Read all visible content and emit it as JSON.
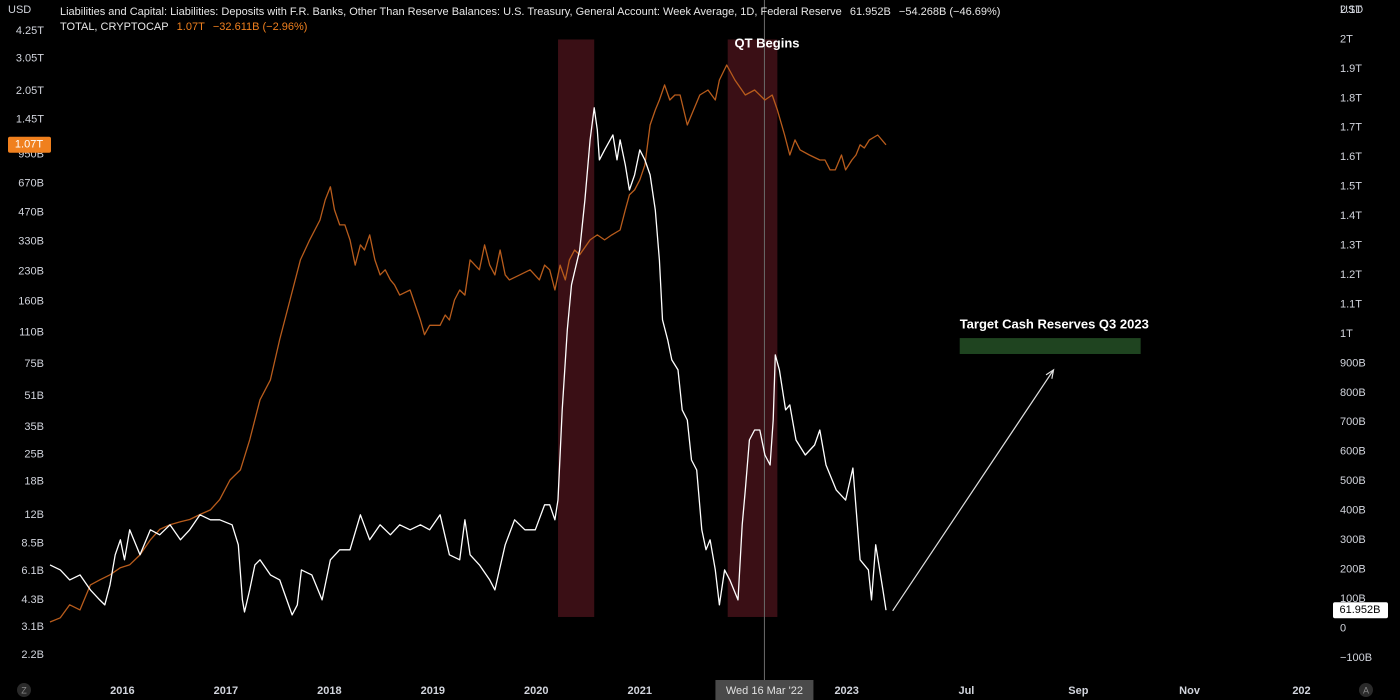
{
  "chart_data": {
    "type": "line",
    "y_unit": "USD",
    "y2_unit": "USD",
    "log_y": true,
    "grid": false,
    "xlim": [
      2015.3,
      2024.05
    ],
    "xticks": [
      2016,
      2017,
      2018,
      2019,
      2020,
      2021,
      2023,
      {
        "value": 2023.5,
        "label": "Jul"
      },
      {
        "value": 2023.667,
        "label": "Sep"
      },
      {
        "value": 2023.833,
        "label": "Nov"
      },
      {
        "value": 2024,
        "label": "202"
      }
    ],
    "ylim": [
      1.73,
      6190
    ],
    "yticks": [
      {
        "value": 4250,
        "label": "4.25T"
      },
      {
        "value": 3050,
        "label": "3.05T"
      },
      {
        "value": 2050,
        "label": "2.05T"
      },
      {
        "value": 1450,
        "label": "1.45T"
      },
      {
        "value": 950,
        "label": "950B"
      },
      {
        "value": 670,
        "label": "670B"
      },
      {
        "value": 470,
        "label": "470B"
      },
      {
        "value": 330,
        "label": "330B"
      },
      {
        "value": 230,
        "label": "230B"
      },
      {
        "value": 160,
        "label": "160B"
      },
      {
        "value": 110,
        "label": "110B"
      },
      {
        "value": 75,
        "label": "75B"
      },
      {
        "value": 51,
        "label": "51B"
      },
      {
        "value": 35,
        "label": "35B"
      },
      {
        "value": 25,
        "label": "25B"
      },
      {
        "value": 18,
        "label": "18B"
      },
      {
        "value": 12,
        "label": "12B"
      },
      {
        "value": 8.5,
        "label": "8.5B"
      },
      {
        "value": 6.1,
        "label": "6.1B"
      },
      {
        "value": 4.3,
        "label": "4.3B"
      },
      {
        "value": 3.1,
        "label": "3.1B"
      },
      {
        "value": 2.2,
        "label": "2.2B"
      }
    ],
    "y2lim": [
      -158,
      2134
    ],
    "y2ticks": [
      {
        "value": 2100,
        "label": "2.1T"
      },
      {
        "value": 2000,
        "label": "2T"
      },
      {
        "value": 1900,
        "label": "1.9T"
      },
      {
        "value": 1800,
        "label": "1.8T"
      },
      {
        "value": 1700,
        "label": "1.7T"
      },
      {
        "value": 1600,
        "label": "1.6T"
      },
      {
        "value": 1500,
        "label": "1.5T"
      },
      {
        "value": 1400,
        "label": "1.4T"
      },
      {
        "value": 1300,
        "label": "1.3T"
      },
      {
        "value": 1200,
        "label": "1.2T"
      },
      {
        "value": 1100,
        "label": "1.1T"
      },
      {
        "value": 1000,
        "label": "1T"
      },
      {
        "value": 900,
        "label": "900B"
      },
      {
        "value": 800,
        "label": "800B"
      },
      {
        "value": 700,
        "label": "700B"
      },
      {
        "value": 600,
        "label": "600B"
      },
      {
        "value": 500,
        "label": "500B"
      },
      {
        "value": 400,
        "label": "400B"
      },
      {
        "value": 300,
        "label": "300B"
      },
      {
        "value": 200,
        "label": "200B"
      },
      {
        "value": 100,
        "label": "100B"
      },
      0,
      {
        "value": -100,
        "label": "−100B"
      }
    ],
    "series": [
      {
        "name": "Liabilities and Capital: Liabilities: Deposits with F.R. Banks, Other Than Reserve Balances: U.S. Treasury, General Account: Week Average, 1D, Federal Reserve",
        "color": "#ffffff",
        "axis": "y2",
        "last_label": "61.952B",
        "change": "−54.268B (−46.69%)",
        "x": [
          2015.3,
          2015.4,
          2015.49,
          2015.59,
          2015.69,
          2015.78,
          2015.83,
          2015.88,
          2015.93,
          2015.98,
          2016.02,
          2016.07,
          2016.17,
          2016.27,
          2016.36,
          2016.46,
          2016.56,
          2016.65,
          2016.75,
          2016.85,
          2016.94,
          2017.06,
          2017.12,
          2017.16,
          2017.18,
          2017.23,
          2017.28,
          2017.33,
          2017.43,
          2017.52,
          2017.64,
          2017.69,
          2017.73,
          2017.83,
          2017.93,
          2018.01,
          2018.1,
          2018.2,
          2018.3,
          2018.39,
          2018.49,
          2018.59,
          2018.68,
          2018.78,
          2018.88,
          2018.97,
          2019.07,
          2019.16,
          2019.26,
          2019.31,
          2019.36,
          2019.45,
          2019.55,
          2019.6,
          2019.7,
          2019.79,
          2019.89,
          2019.99,
          2020.08,
          2020.13,
          2020.18,
          2020.21,
          2020.25,
          2020.3,
          2020.34,
          2020.42,
          2020.47,
          2020.52,
          2020.56,
          2020.59,
          2020.61,
          2020.66,
          2020.74,
          2020.78,
          2020.81,
          2020.86,
          2020.9,
          2020.95,
          2021.0,
          2021.05,
          2021.1,
          2021.15,
          2021.19,
          2021.22,
          2021.27,
          2021.31,
          2021.37,
          2021.41,
          2021.46,
          2021.5,
          2021.55,
          2021.6,
          2021.64,
          2021.68,
          2021.73,
          2021.77,
          2021.82,
          2021.87,
          2021.95,
          2021.99,
          2022.02,
          2022.06,
          2022.11,
          2022.16,
          2022.21,
          2022.26,
          2022.29,
          2022.31,
          2022.35,
          2022.41,
          2022.45,
          2022.51,
          2022.6,
          2022.69,
          2022.74,
          2022.8,
          2022.9,
          2022.99,
          2023.06,
          2023.13,
          2023.21,
          2023.24,
          2023.28,
          2023.35,
          2023.38
        ],
        "values": [
          216,
          199,
          165,
          182,
          131,
          97,
          80,
          148,
          250,
          301,
          233,
          335,
          250,
          335,
          318,
          352,
          301,
          335,
          386,
          369,
          369,
          352,
          284,
          97,
          56,
          131,
          216,
          233,
          182,
          165,
          46,
          80,
          199,
          182,
          97,
          233,
          267,
          267,
          386,
          301,
          352,
          318,
          352,
          335,
          352,
          335,
          386,
          250,
          233,
          369,
          250,
          216,
          165,
          131,
          284,
          369,
          335,
          335,
          420,
          420,
          369,
          437,
          742,
          1014,
          1167,
          1285,
          1455,
          1659,
          1768,
          1693,
          1591,
          1625,
          1676,
          1591,
          1659,
          1574,
          1489,
          1540,
          1625,
          1591,
          1540,
          1421,
          1251,
          1048,
          980,
          912,
          878,
          742,
          708,
          572,
          538,
          335,
          267,
          301,
          199,
          80,
          199,
          165,
          97,
          352,
          470,
          640,
          674,
          674,
          589,
          555,
          708,
          929,
          878,
          742,
          759,
          640,
          589,
          623,
          674,
          555,
          470,
          436,
          545,
          233,
          199,
          97,
          284,
          131,
          61.952
        ]
      },
      {
        "name": "TOTAL, CRYPTOCAP",
        "color": "#b85c1c",
        "axis": "y",
        "last_label": "1.07T",
        "change": "−32.611B (−2.96%)",
        "x": [
          2015.3,
          2015.4,
          2015.49,
          2015.59,
          2015.69,
          2015.78,
          2015.88,
          2015.98,
          2016.07,
          2016.17,
          2016.27,
          2016.36,
          2016.46,
          2016.56,
          2016.65,
          2016.75,
          2016.85,
          2016.94,
          2017.04,
          2017.14,
          2017.23,
          2017.33,
          2017.43,
          2017.52,
          2017.62,
          2017.72,
          2017.81,
          2017.91,
          2017.96,
          2018.01,
          2018.05,
          2018.1,
          2018.15,
          2018.2,
          2018.25,
          2018.3,
          2018.34,
          2018.39,
          2018.44,
          2018.49,
          2018.54,
          2018.59,
          2018.63,
          2018.68,
          2018.78,
          2018.88,
          2018.92,
          2018.97,
          2019.07,
          2019.12,
          2019.16,
          2019.21,
          2019.26,
          2019.31,
          2019.36,
          2019.45,
          2019.5,
          2019.55,
          2019.6,
          2019.65,
          2019.7,
          2019.74,
          2019.84,
          2019.94,
          2020.03,
          2020.08,
          2020.13,
          2020.18,
          2020.23,
          2020.28,
          2020.32,
          2020.37,
          2020.42,
          2020.52,
          2020.59,
          2020.66,
          2020.73,
          2020.81,
          2020.86,
          2020.9,
          2020.95,
          2021.0,
          2021.05,
          2021.1,
          2021.15,
          2021.19,
          2021.24,
          2021.29,
          2021.34,
          2021.39,
          2021.46,
          2021.5,
          2021.58,
          2021.66,
          2021.73,
          2021.77,
          2021.84,
          2021.92,
          2022.02,
          2022.11,
          2022.21,
          2022.28,
          2022.33,
          2022.4,
          2022.45,
          2022.5,
          2022.55,
          2022.64,
          2022.74,
          2022.79,
          2022.84,
          2022.89,
          2022.95,
          2022.99,
          2023.05,
          2023.09,
          2023.13,
          2023.17,
          2023.22,
          2023.3,
          2023.38
        ],
        "values": [
          3.29,
          3.46,
          4.05,
          3.81,
          5.16,
          5.48,
          5.83,
          6.35,
          6.58,
          7.42,
          8.91,
          10.1,
          10.7,
          11.1,
          11.4,
          12.1,
          12.8,
          14.5,
          18.4,
          20.8,
          29.9,
          48.6,
          61.9,
          101,
          163,
          265,
          338,
          430,
          548,
          643,
          486,
          405,
          405,
          338,
          249,
          318,
          299,
          359,
          265,
          221,
          235,
          208,
          196,
          173,
          184,
          128,
          107,
          120,
          120,
          136,
          128,
          163,
          184,
          173,
          265,
          235,
          318,
          249,
          221,
          299,
          221,
          208,
          221,
          235,
          208,
          249,
          235,
          184,
          249,
          208,
          265,
          299,
          282,
          338,
          359,
          338,
          359,
          381,
          486,
          583,
          619,
          699,
          839,
          1361,
          1632,
          1842,
          2211,
          1842,
          1957,
          1957,
          1361,
          1537,
          1957,
          2079,
          1842,
          2348,
          2815,
          2348,
          1957,
          2079,
          1842,
          1957,
          1632,
          1205,
          946,
          1135,
          1006,
          946,
          890,
          890,
          789,
          789,
          946,
          789,
          890,
          946,
          1070,
          1029,
          1135,
          1205,
          1070
        ]
      }
    ],
    "highlights": [
      {
        "x": [
          2020.21,
          2020.56
        ],
        "y": [
          39,
          2000
        ],
        "color": "#3a0f15"
      },
      {
        "x": [
          2021.85,
          2022.33
        ],
        "y": [
          39,
          2000
        ],
        "color": "#3a0f15"
      }
    ],
    "target": {
      "label": "Target Cash Reserves Q3 2023",
      "x": [
        2023.49,
        2023.76
      ],
      "y": [
        932,
        986
      ],
      "color": "#1f4420"
    },
    "arrow": {
      "from": [
        2023.39,
        60
      ],
      "to": [
        2023.63,
        878
      ]
    },
    "annotation": {
      "text": "QT Begins",
      "x": 2022.23,
      "y": 1985
    },
    "crosshair": {
      "x": 2022.205,
      "label": "Wed 16 Mar '22"
    }
  },
  "controls": [
    "Z",
    "A"
  ]
}
